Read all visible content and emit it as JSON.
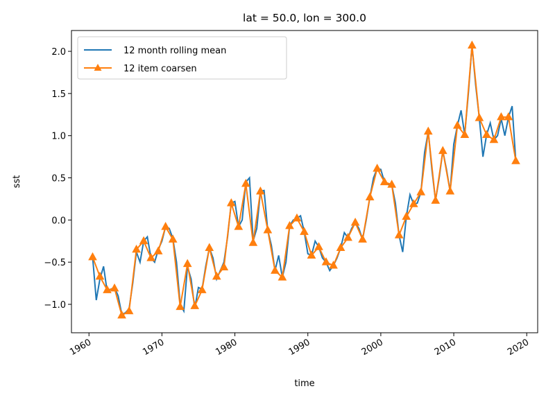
{
  "chart_data": {
    "type": "line",
    "title": "lat = 50.0, lon = 300.0",
    "x_label": "time",
    "y_label": "sst",
    "legend": "upper left",
    "xlim": [
      1957.6,
      2021.5
    ],
    "ylim": [
      -1.337,
      2.247
    ],
    "xticks": [
      1960,
      1970,
      1980,
      1990,
      2000,
      2010,
      2020
    ],
    "yticks": [
      {
        "value": -1.0,
        "label": "−1.0"
      },
      {
        "value": -0.5,
        "label": "−0.5"
      },
      {
        "value": 0.0,
        "label": "0.0"
      },
      0.5,
      {
        "value": 1.0,
        "label": "1.0"
      },
      1.5,
      {
        "value": 2.0,
        "label": "2.0"
      }
    ],
    "series": [
      {
        "name": "12 month rolling mean",
        "color": "#1f77b4",
        "marker": "none",
        "x": [
          1960.5,
          1961,
          1961.5,
          1962,
          1962.5,
          1963,
          1963.5,
          1964,
          1964.5,
          1965,
          1965.5,
          1966,
          1966.5,
          1967,
          1967.5,
          1968,
          1968.5,
          1969,
          1969.5,
          1970,
          1970.5,
          1971,
          1971.5,
          1972,
          1972.5,
          1973,
          1973.5,
          1974,
          1974.5,
          1975,
          1975.5,
          1976,
          1976.5,
          1977,
          1977.5,
          1978,
          1978.5,
          1979,
          1979.5,
          1980,
          1980.5,
          1981,
          1981.5,
          1982,
          1982.5,
          1983,
          1983.5,
          1984,
          1984.5,
          1985,
          1985.5,
          1986,
          1986.5,
          1987,
          1987.5,
          1988,
          1988.5,
          1989,
          1989.5,
          1990,
          1990.5,
          1991,
          1991.5,
          1992,
          1992.5,
          1993,
          1993.5,
          1994,
          1994.5,
          1995,
          1995.5,
          1996,
          1996.5,
          1997,
          1997.5,
          1998,
          1998.5,
          1999,
          1999.5,
          2000,
          2000.5,
          2001,
          2001.5,
          2002,
          2002.5,
          2003,
          2003.5,
          2004,
          2004.5,
          2005,
          2005.5,
          2006,
          2006.5,
          2007,
          2007.5,
          2008,
          2008.5,
          2009,
          2009.5,
          2010,
          2010.5,
          2011,
          2011.5,
          2012,
          2012.5,
          2013,
          2013.5,
          2014,
          2014.5,
          2015,
          2015.5,
          2016,
          2016.5,
          2017,
          2017.5,
          2018,
          2018.5
        ],
        "values": [
          -0.44,
          -0.95,
          -0.7,
          -0.55,
          -0.85,
          -0.82,
          -0.8,
          -0.9,
          -1.12,
          -1.1,
          -1.05,
          -0.75,
          -0.38,
          -0.5,
          -0.25,
          -0.2,
          -0.45,
          -0.5,
          -0.35,
          -0.25,
          -0.08,
          -0.1,
          -0.22,
          -0.5,
          -1.0,
          -1.08,
          -0.55,
          -0.7,
          -1.05,
          -0.8,
          -0.82,
          -0.55,
          -0.33,
          -0.45,
          -0.7,
          -0.6,
          -0.5,
          -0.2,
          0.2,
          0.22,
          -0.08,
          0.0,
          0.45,
          0.5,
          -0.25,
          -0.1,
          0.34,
          0.35,
          -0.12,
          -0.3,
          -0.6,
          -0.42,
          -0.68,
          -0.5,
          -0.07,
          0.0,
          0.02,
          0.05,
          -0.14,
          -0.4,
          -0.42,
          -0.25,
          -0.32,
          -0.45,
          -0.5,
          -0.6,
          -0.54,
          -0.45,
          -0.33,
          -0.15,
          -0.21,
          -0.1,
          -0.03,
          -0.1,
          -0.23,
          0.0,
          0.27,
          0.5,
          0.61,
          0.6,
          0.45,
          0.42,
          0.42,
          0.2,
          -0.18,
          -0.38,
          0.04,
          0.3,
          0.19,
          0.2,
          0.33,
          0.8,
          1.05,
          0.6,
          0.23,
          0.5,
          0.82,
          0.6,
          0.34,
          0.9,
          1.12,
          1.3,
          1.01,
          1.5,
          2.07,
          1.6,
          1.21,
          0.75,
          1.01,
          1.15,
          0.95,
          1.0,
          1.2,
          1.0,
          1.22,
          1.35,
          0.7
        ]
      },
      {
        "name": "12 item coarsen",
        "color": "#ff7f0e",
        "marker": "triangle",
        "x": [
          1960.5,
          1961.5,
          1962.5,
          1963.5,
          1964.5,
          1965.5,
          1966.5,
          1967.5,
          1968.5,
          1969.5,
          1970.5,
          1971.5,
          1972.5,
          1973.5,
          1974.5,
          1975.5,
          1976.5,
          1977.5,
          1978.5,
          1979.5,
          1980.5,
          1981.5,
          1982.5,
          1983.5,
          1984.5,
          1985.5,
          1986.5,
          1987.5,
          1988.5,
          1989.5,
          1990.5,
          1991.5,
          1992.5,
          1993.5,
          1994.5,
          1995.5,
          1996.5,
          1997.5,
          1998.5,
          1999.5,
          2000.5,
          2001.5,
          2002.5,
          2003.5,
          2004.5,
          2005.5,
          2006.5,
          2007.5,
          2008.5,
          2009.5,
          2010.5,
          2011.5,
          2012.5,
          2013.5,
          2014.5,
          2015.5,
          2016.5,
          2017.5,
          2018.5
        ],
        "values": [
          -0.44,
          -0.67,
          -0.83,
          -0.81,
          -1.13,
          -1.08,
          -0.35,
          -0.25,
          -0.45,
          -0.37,
          -0.08,
          -0.23,
          -1.03,
          -0.52,
          -1.02,
          -0.83,
          -0.33,
          -0.67,
          -0.56,
          0.2,
          -0.08,
          0.43,
          -0.27,
          0.34,
          -0.12,
          -0.6,
          -0.68,
          -0.07,
          0.02,
          -0.14,
          -0.42,
          -0.32,
          -0.5,
          -0.54,
          -0.33,
          -0.21,
          -0.03,
          -0.23,
          0.27,
          0.61,
          0.45,
          0.42,
          -0.18,
          0.04,
          0.19,
          0.33,
          1.05,
          0.23,
          0.82,
          0.34,
          1.12,
          1.01,
          2.07,
          1.21,
          1.01,
          0.95,
          1.22,
          1.22,
          0.7
        ]
      }
    ]
  }
}
